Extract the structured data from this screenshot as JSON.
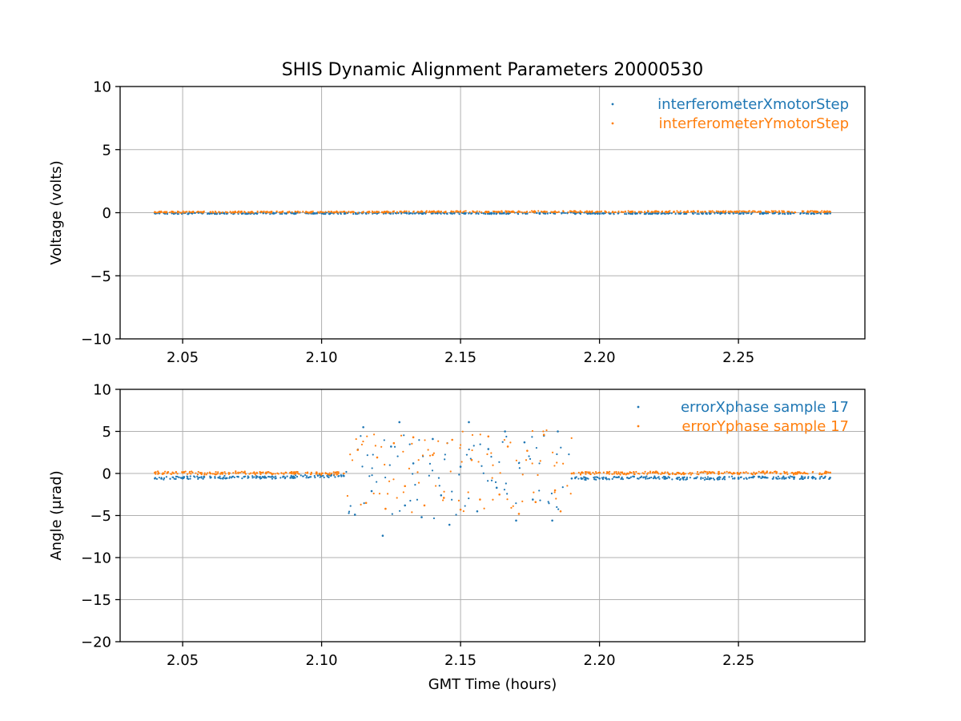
{
  "chart_data": [
    {
      "type": "scatter",
      "title": "SHIS Dynamic Alignment Parameters 20000530",
      "xlabel": "",
      "ylabel": "Voltage (volts)",
      "xlim": [
        2.0275,
        2.2955
      ],
      "ylim": [
        -10,
        10
      ],
      "xticks": [
        2.05,
        2.1,
        2.15,
        2.2,
        2.25
      ],
      "xtick_labels": [
        "2.05",
        "2.10",
        "2.15",
        "2.20",
        "2.25"
      ],
      "yticks": [
        -10,
        -5,
        0,
        5,
        10
      ],
      "ytick_labels": [
        "−10",
        "−5",
        "0",
        "5",
        "10"
      ],
      "grid": true,
      "legend_position": "top-right",
      "series": [
        {
          "name": "interferometerXmotorStep",
          "color": "#1f77b4",
          "x": [
            2.04,
            2.06,
            2.08,
            2.1,
            2.12,
            2.14,
            2.16,
            2.18,
            2.2,
            2.22,
            2.24,
            2.26,
            2.283
          ],
          "y": [
            -0.05,
            -0.05,
            -0.05,
            -0.05,
            -0.05,
            -0.05,
            -0.05,
            -0.05,
            -0.05,
            -0.05,
            -0.05,
            -0.05,
            -0.05
          ]
        },
        {
          "name": "interferometerYmotorStep",
          "color": "#ff7f0e",
          "x": [
            2.04,
            2.06,
            2.08,
            2.1,
            2.12,
            2.14,
            2.16,
            2.18,
            2.2,
            2.22,
            2.24,
            2.26,
            2.283
          ],
          "y": [
            0.05,
            0.05,
            0.05,
            0.05,
            0.05,
            0.08,
            0.08,
            0.08,
            0.08,
            0.08,
            0.08,
            0.08,
            0.08
          ]
        }
      ]
    },
    {
      "type": "scatter",
      "title": "",
      "xlabel": "GMT Time (hours)",
      "ylabel": "Angle (μrad)",
      "xlim": [
        2.0275,
        2.2955
      ],
      "ylim": [
        -20,
        10
      ],
      "xticks": [
        2.05,
        2.1,
        2.15,
        2.2,
        2.25
      ],
      "xtick_labels": [
        "2.05",
        "2.10",
        "2.15",
        "2.20",
        "2.25"
      ],
      "yticks": [
        -20,
        -15,
        -10,
        -5,
        0,
        5,
        10
      ],
      "ytick_labels": [
        "−20",
        "−15",
        "−10",
        "−5",
        "0",
        "5",
        "10"
      ],
      "grid": true,
      "legend_position": "top-right",
      "series": [
        {
          "name": "errorXphase sample 17",
          "color": "#1f77b4",
          "x": [
            2.04,
            2.05,
            2.06,
            2.07,
            2.08,
            2.09,
            2.1,
            2.108,
            2.112,
            2.115,
            2.118,
            2.122,
            2.125,
            2.128,
            2.13,
            2.133,
            2.136,
            2.14,
            2.143,
            2.146,
            2.15,
            2.153,
            2.156,
            2.16,
            2.163,
            2.166,
            2.17,
            2.173,
            2.176,
            2.18,
            2.183,
            2.185,
            2.19,
            2.2,
            2.21,
            2.22,
            2.23,
            2.24,
            2.25,
            2.26,
            2.27,
            2.283
          ],
          "y": [
            -0.6,
            -0.5,
            -0.5,
            -0.4,
            -0.5,
            -0.4,
            -0.3,
            -0.3,
            -4.9,
            5.5,
            -2.1,
            -7.4,
            3.2,
            6.1,
            -3.8,
            1.2,
            -5.2,
            4.1,
            -2.6,
            -6.1,
            0.8,
            6.1,
            -4.5,
            2.9,
            -1.7,
            5.0,
            -5.6,
            3.7,
            -3.1,
            4.5,
            -5.6,
            5.0,
            -0.6,
            -0.6,
            -0.5,
            -0.5,
            -0.6,
            -0.6,
            -0.5,
            -0.5,
            -0.5,
            -0.5
          ]
        },
        {
          "name": "errorYphase sample 17",
          "color": "#ff7f0e",
          "x": [
            2.04,
            2.05,
            2.06,
            2.07,
            2.08,
            2.09,
            2.1,
            2.108,
            2.113,
            2.116,
            2.12,
            2.123,
            2.126,
            2.13,
            2.133,
            2.137,
            2.14,
            2.144,
            2.147,
            2.15,
            2.154,
            2.157,
            2.16,
            2.164,
            2.167,
            2.171,
            2.174,
            2.177,
            2.18,
            2.184,
            2.186,
            2.19,
            2.2,
            2.21,
            2.22,
            2.23,
            2.24,
            2.25,
            2.26,
            2.27,
            2.283
          ],
          "y": [
            0.1,
            0.1,
            0.0,
            0.1,
            0.0,
            0.1,
            0.0,
            0.0,
            2.8,
            -3.5,
            1.9,
            -4.2,
            3.6,
            -1.5,
            4.3,
            -3.8,
            2.2,
            -2.9,
            4.0,
            -4.3,
            1.6,
            -3.1,
            4.4,
            -2.5,
            3.2,
            -4.8,
            2.7,
            -3.4,
            4.6,
            -2.0,
            -4.5,
            0.0,
            0.1,
            0.0,
            0.1,
            0.0,
            0.1,
            0.0,
            0.1,
            0.0,
            0.1
          ]
        }
      ]
    }
  ]
}
